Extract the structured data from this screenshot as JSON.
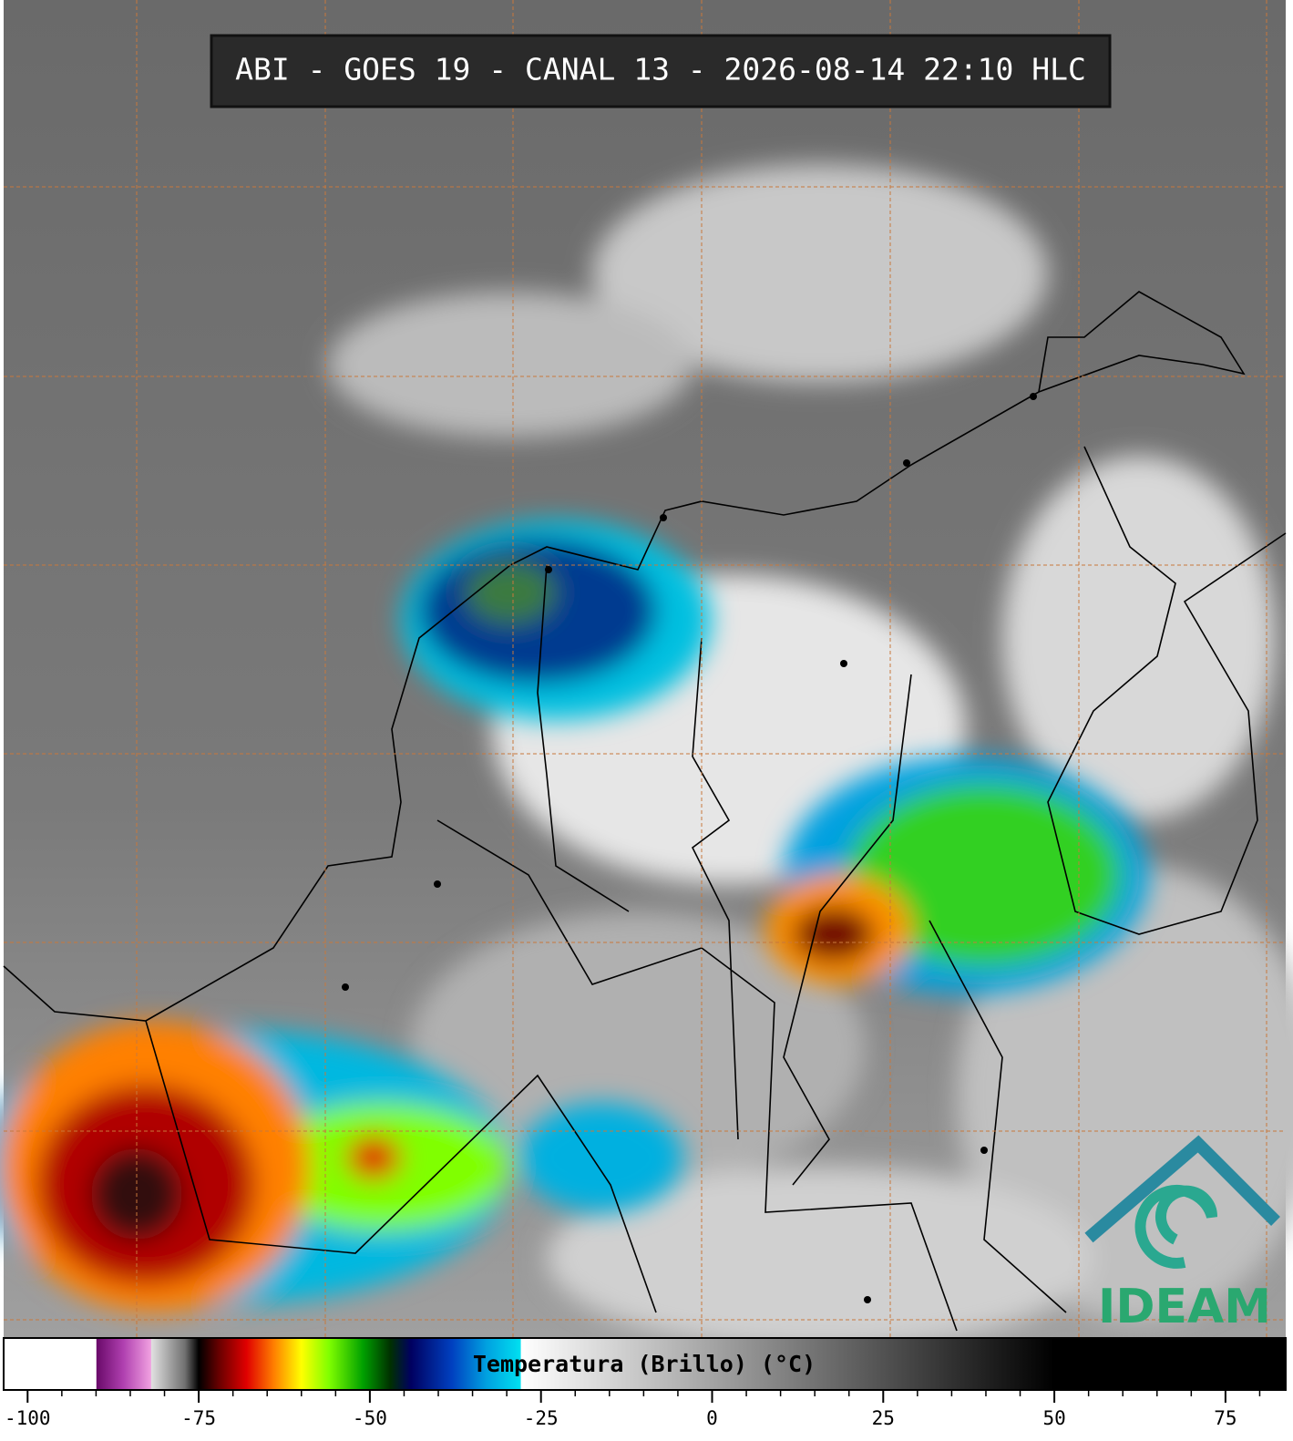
{
  "header": {
    "title": "ABI - GOES 19 - CANAL 13 - 2026-08-14 22:10 HLC"
  },
  "colorbar": {
    "label": "Temperatura (Brillo) (°C)",
    "xlim": [
      -103.5,
      83.8
    ],
    "xticks": [
      -100,
      -75,
      -50,
      -25,
      0,
      25,
      50,
      75
    ],
    "minor_xticks": [
      -95,
      -90,
      -85,
      -80,
      -70,
      -65,
      -60,
      -55,
      -45,
      -40,
      -35,
      -30,
      -20,
      -15,
      -10,
      -5,
      5,
      10,
      15,
      20,
      30,
      35,
      40,
      45,
      55,
      60,
      65,
      70,
      80
    ],
    "stops": [
      {
        "value": -103.5,
        "color": "#ffffff"
      },
      {
        "value": -90,
        "color": "#ffffff"
      },
      {
        "value": -89.9,
        "color": "#6a0a6a"
      },
      {
        "value": -86,
        "color": "#b040b0"
      },
      {
        "value": -82,
        "color": "#f0a0e0"
      },
      {
        "value": -81.9,
        "color": "#e0e0e0"
      },
      {
        "value": -77,
        "color": "#707070"
      },
      {
        "value": -75,
        "color": "#000000"
      },
      {
        "value": -72,
        "color": "#6a0000"
      },
      {
        "value": -68,
        "color": "#e00000"
      },
      {
        "value": -64,
        "color": "#ff8000"
      },
      {
        "value": -60,
        "color": "#ffff00"
      },
      {
        "value": -56,
        "color": "#80ff00"
      },
      {
        "value": -51,
        "color": "#00a000"
      },
      {
        "value": -47,
        "color": "#003000"
      },
      {
        "value": -44,
        "color": "#000060"
      },
      {
        "value": -38,
        "color": "#0040c0"
      },
      {
        "value": -33,
        "color": "#00a0e0"
      },
      {
        "value": -28,
        "color": "#00e0f0"
      },
      {
        "value": -27.9,
        "color": "#ffffff"
      },
      {
        "value": 50,
        "color": "#000000"
      },
      {
        "value": 83.8,
        "color": "#000000"
      }
    ]
  },
  "logo": {
    "text": "IDEAM"
  }
}
